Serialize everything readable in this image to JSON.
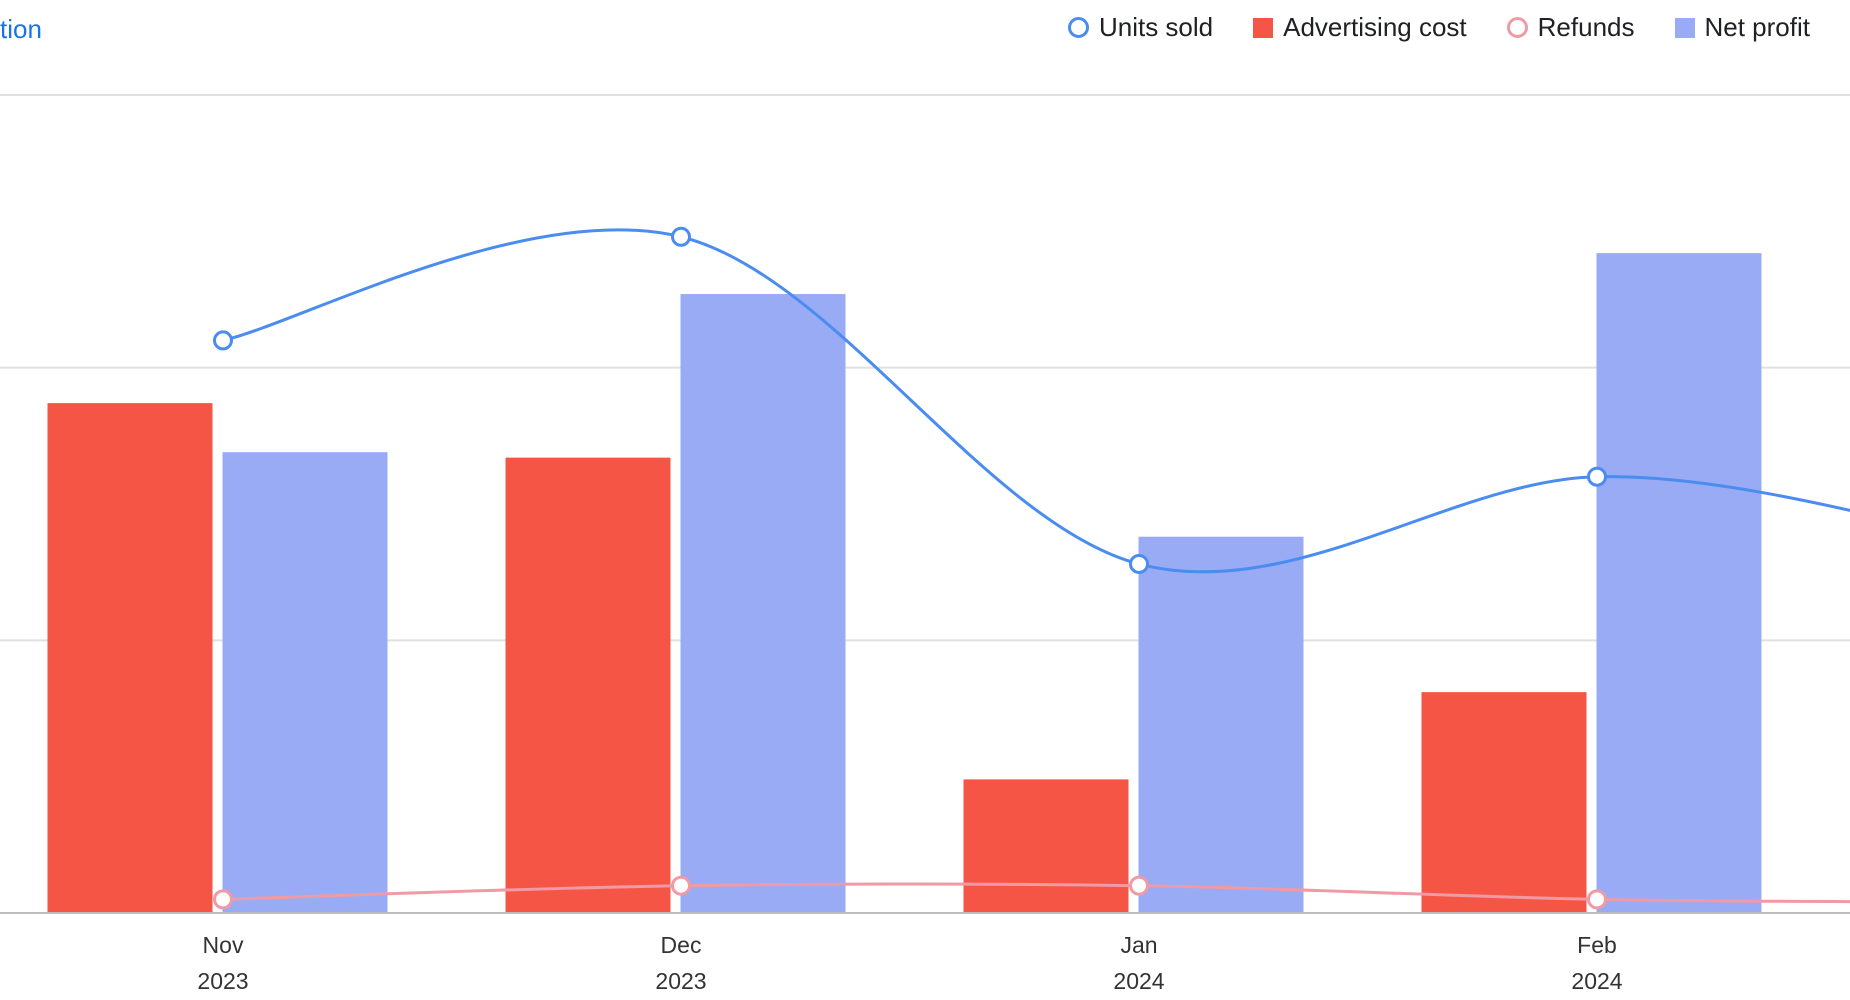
{
  "header": {
    "link_fragment": "tion"
  },
  "colors": {
    "units_sold": "#4a8cf0",
    "advertising_cost": "#f45545",
    "refunds": "#f09aa5",
    "net_profit": "#99abf5",
    "grid": "#e0e0e0",
    "axis": "#bdbdbd",
    "tick_text": "#333333"
  },
  "chart_data": {
    "type": "bar",
    "categories": [
      "Nov 2023",
      "Dec 2023",
      "Jan 2024",
      "Feb 2024"
    ],
    "x_tick_labels": [
      {
        "month": "Nov",
        "year": "2023"
      },
      {
        "month": "Dec",
        "year": "2023"
      },
      {
        "month": "Jan",
        "year": "2024"
      },
      {
        "month": "Feb",
        "year": "2024"
      }
    ],
    "series": [
      {
        "name": "Units sold",
        "kind": "line",
        "axis": "right",
        "values": [
          2.1,
          2.48,
          1.28,
          1.6
        ],
        "trailing_value": 1.35
      },
      {
        "name": "Advertising cost",
        "kind": "bar",
        "axis": "left",
        "values": [
          1.87,
          1.67,
          0.49,
          0.81
        ]
      },
      {
        "name": "Refunds",
        "kind": "line",
        "axis": "right",
        "values": [
          0.05,
          0.1,
          0.1,
          0.05
        ],
        "trailing_value": 0.04
      },
      {
        "name": "Net profit",
        "kind": "bar",
        "axis": "left",
        "values": [
          1.69,
          2.27,
          1.38,
          2.42
        ]
      }
    ],
    "left_ylim": [
      0,
      3
    ],
    "right_ylim": [
      0,
      3
    ],
    "grid": true,
    "legend_position": "top-right",
    "title": "",
    "xlabel": "",
    "ylabel": ""
  }
}
